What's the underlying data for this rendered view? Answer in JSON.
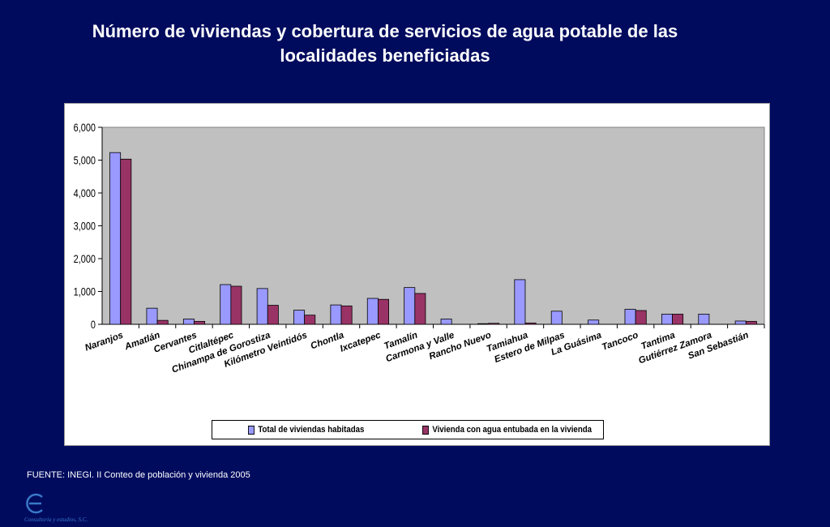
{
  "title_line1": "Número de viviendas y cobertura de servicios de agua potable de las",
  "title_line2": "localidades beneficiadas",
  "source": "FUENTE: INEGI. II Conteo de población y vivienda 2005",
  "logo_text": "Consultoría y estudios, S.C.",
  "colors": {
    "background": "#000b5e",
    "plot_area": "#c0c0c0",
    "series1": "#9999ff",
    "series2": "#993366",
    "logo": "#3a78c8"
  },
  "chart_data": {
    "type": "bar",
    "title": "Número de viviendas y cobertura de servicios de agua potable de las localidades beneficiadas",
    "xlabel": "",
    "ylabel": "",
    "ylim": [
      0,
      6000
    ],
    "yticks": [
      "0",
      "1,000",
      "2,000",
      "3,000",
      "4,000",
      "5,000",
      "6,000"
    ],
    "grid": false,
    "legend_position": "bottom",
    "categories": [
      "Naranjos",
      "Amatlán",
      "Cervantes",
      "Citlaltépec",
      "Chinampa de Gorostiza",
      "Kilómetro Veintidós",
      "Chontla",
      "Ixcatepec",
      "Tamalín",
      "Carmona y Valle",
      "Rancho Nuevo",
      "Tamiahua",
      "Estero de Milpas",
      "La Guásima",
      "Tancoco",
      "Tantima",
      "Gutiérrez Zamora",
      "San Sebastián"
    ],
    "series": [
      {
        "name": "Total de viviendas habitadas",
        "values": [
          5230,
          490,
          160,
          1210,
          1090,
          430,
          590,
          790,
          1120,
          160,
          20,
          1360,
          400,
          130,
          460,
          310,
          310,
          100
        ]
      },
      {
        "name": "Vivienda con agua entubada en la vivienda",
        "values": [
          5030,
          120,
          90,
          1160,
          580,
          280,
          560,
          760,
          940,
          0,
          30,
          40,
          0,
          0,
          420,
          310,
          0,
          90
        ]
      }
    ]
  }
}
